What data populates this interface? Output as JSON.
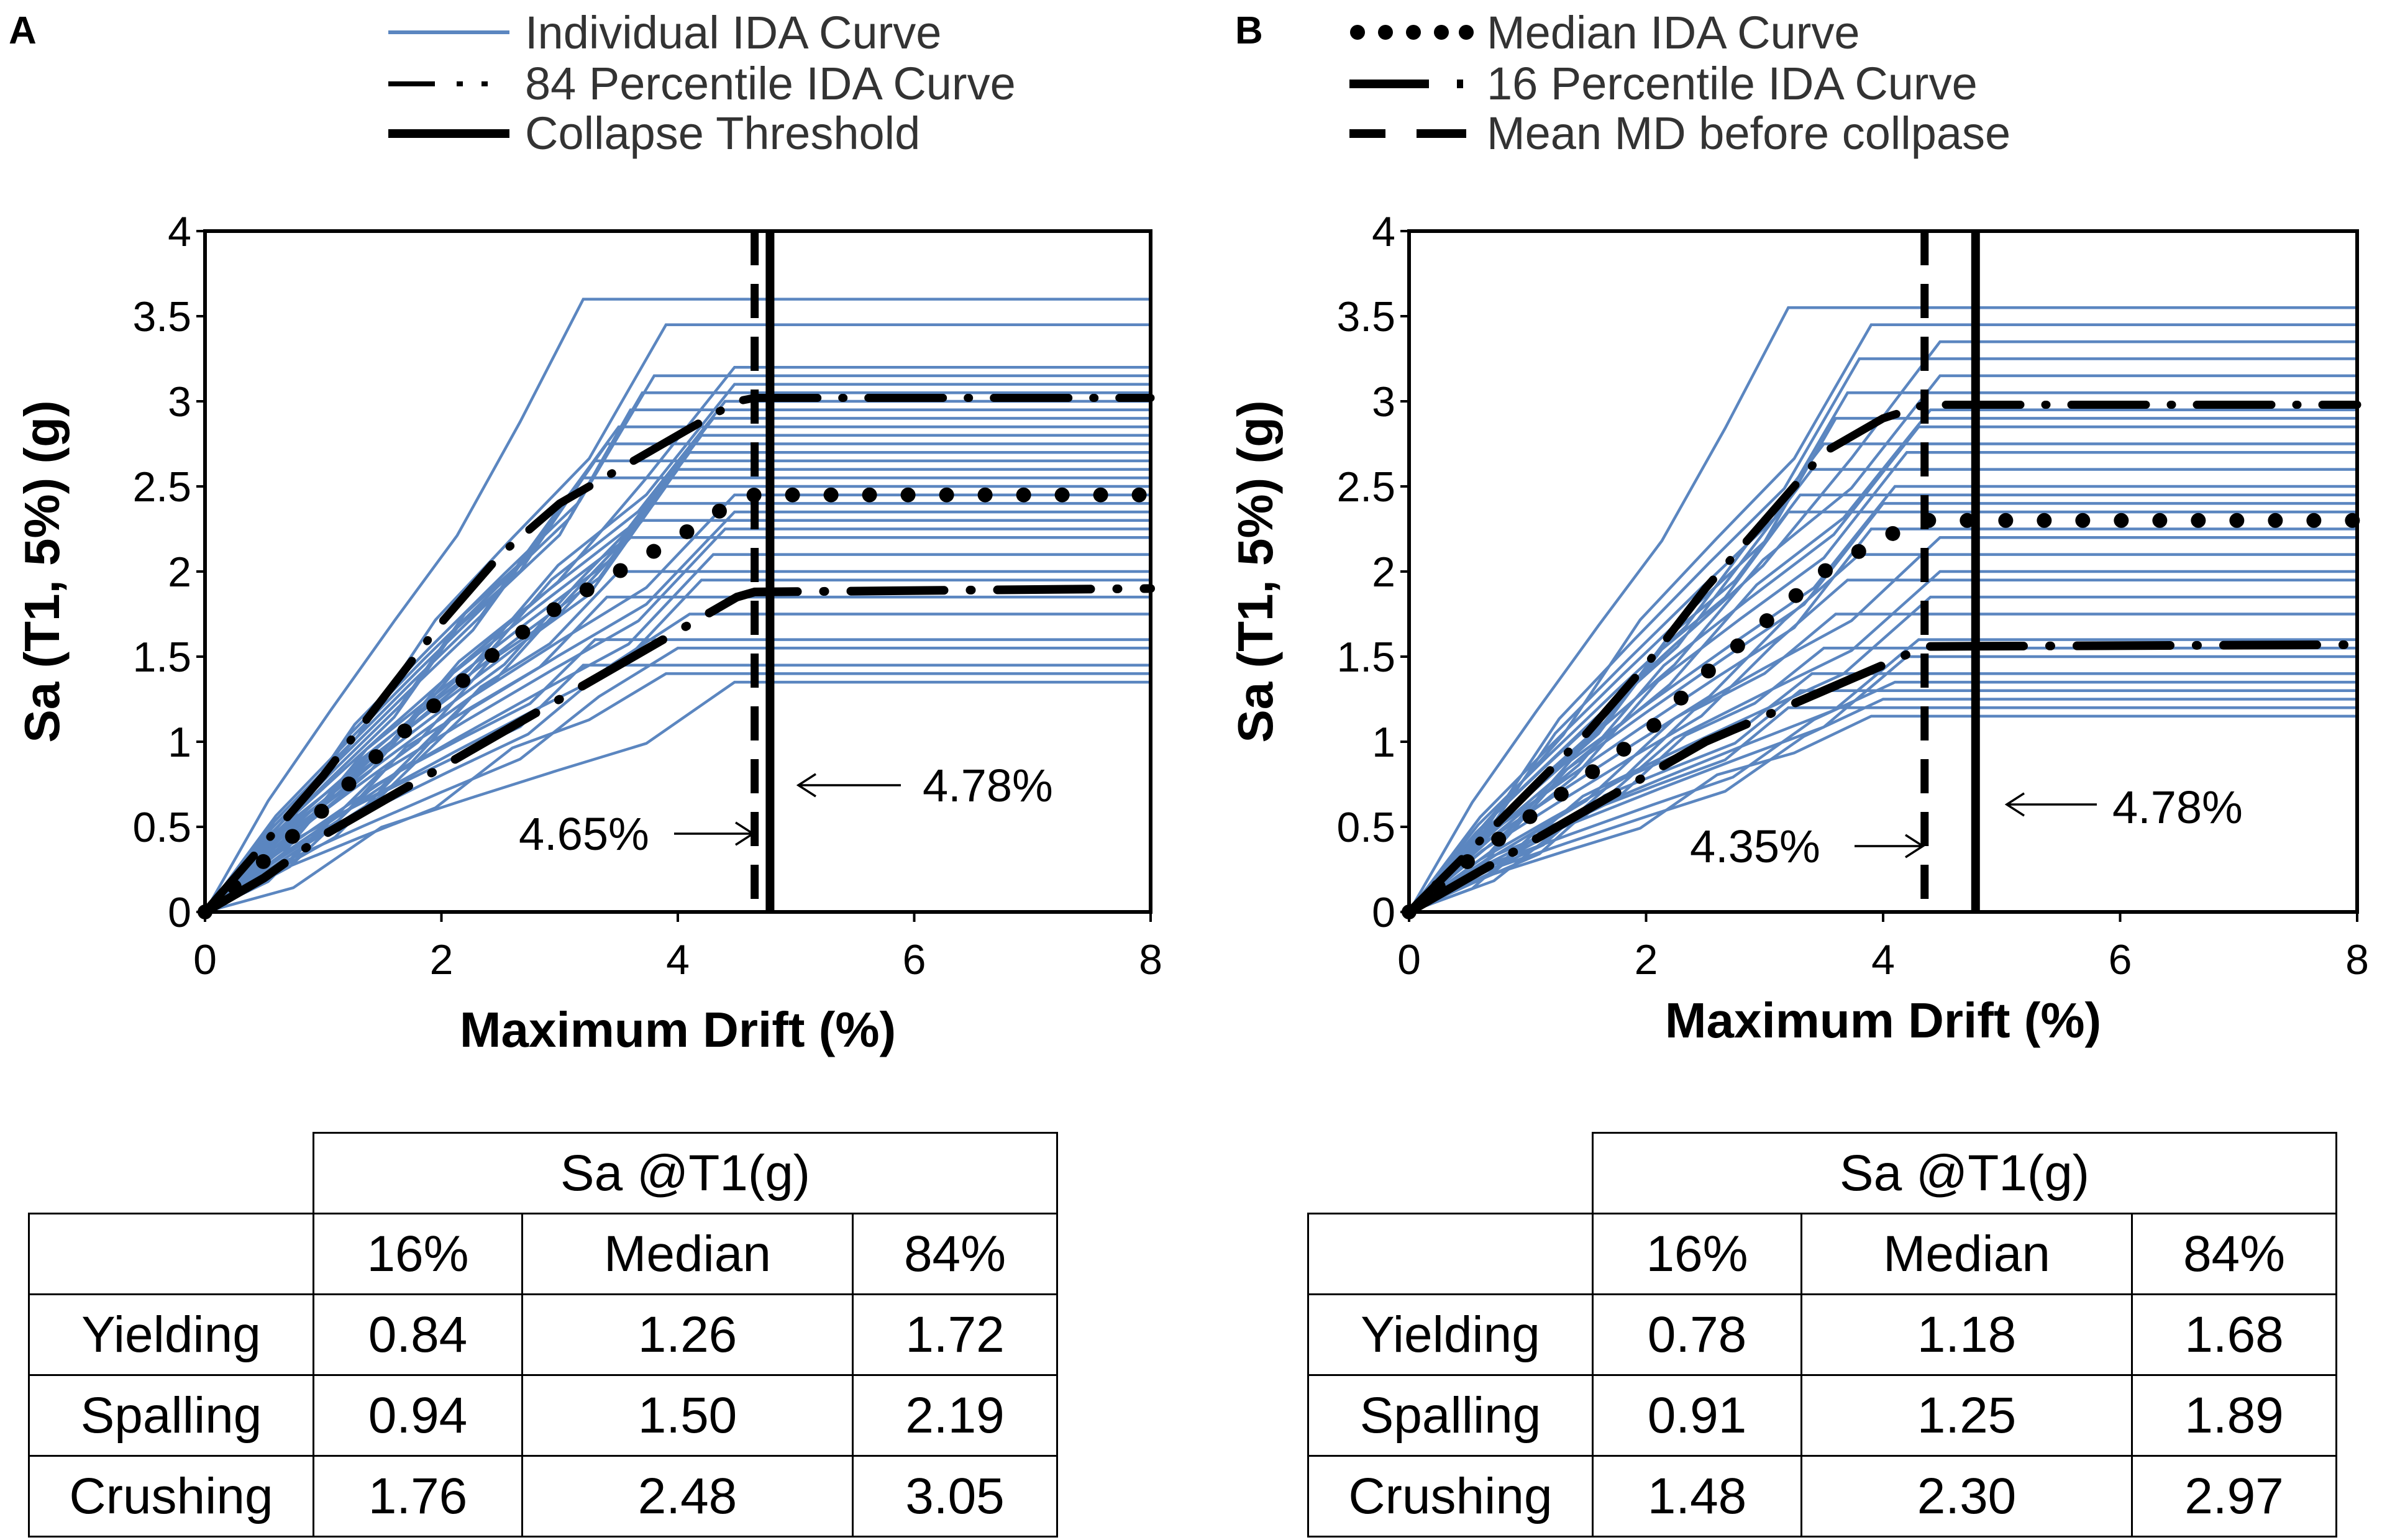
{
  "chart_data": [
    {
      "type": "line",
      "panel": "A",
      "xlabel": "Maximum Drift (%)",
      "ylabel": "Sa (T1, 5%) (g)",
      "xlim": [
        0,
        8
      ],
      "ylim": [
        0,
        4
      ],
      "x_ticks": [
        "0",
        "2",
        "4",
        "6",
        "8"
      ],
      "y_ticks": [
        "0",
        "0.5",
        "1",
        "1.5",
        "2",
        "2.5",
        "3",
        "3.5",
        "4"
      ],
      "legend": [
        "Individual IDA Curve",
        "84 Percentile IDA Curve",
        "Collapse Threshold"
      ],
      "individual_plateaus": [
        3.6,
        3.45,
        3.2,
        3.15,
        3.1,
        3.05,
        3.0,
        2.95,
        2.9,
        2.85,
        2.8,
        2.75,
        2.7,
        2.65,
        2.6,
        2.55,
        2.5,
        2.45,
        2.4,
        2.35,
        2.3,
        2.25,
        2.2,
        2.1,
        2.0,
        1.95,
        1.85,
        1.75,
        1.6,
        1.55,
        1.45,
        1.4,
        1.35
      ],
      "series": [
        {
          "name": "84 Percentile IDA Curve",
          "x": [
            0,
            0.5,
            1.0,
            1.5,
            2.0,
            2.5,
            3.0,
            3.5,
            4.0,
            4.5,
            4.65,
            8
          ],
          "y": [
            0,
            0.4,
            0.8,
            1.25,
            1.7,
            2.1,
            2.4,
            2.6,
            2.8,
            3.0,
            3.02,
            3.02
          ]
        },
        {
          "name": "Median IDA Curve",
          "x": [
            0,
            0.5,
            1.0,
            1.5,
            2.0,
            2.5,
            3.0,
            3.5,
            4.0,
            4.5,
            4.65,
            8
          ],
          "y": [
            0,
            0.3,
            0.6,
            0.95,
            1.25,
            1.55,
            1.8,
            2.0,
            2.2,
            2.42,
            2.45,
            2.45
          ]
        },
        {
          "name": "16 Percentile IDA Curve",
          "x": [
            0,
            0.5,
            1.0,
            1.5,
            2.0,
            2.5,
            3.0,
            3.5,
            4.0,
            4.5,
            4.65,
            8
          ],
          "y": [
            0,
            0.2,
            0.45,
            0.65,
            0.85,
            1.05,
            1.25,
            1.45,
            1.65,
            1.85,
            1.88,
            1.9
          ]
        }
      ],
      "mean_md_before_collapse": 4.65,
      "collapse_threshold": 4.78,
      "annotations": [
        "4.65%",
        "4.78%"
      ]
    },
    {
      "type": "line",
      "panel": "B",
      "xlabel": "Maximum Drift (%)",
      "ylabel": "Sa (T1, 5%) (g)",
      "xlim": [
        0,
        8
      ],
      "ylim": [
        0,
        4
      ],
      "x_ticks": [
        "0",
        "2",
        "4",
        "6",
        "8"
      ],
      "y_ticks": [
        "0",
        "0.5",
        "1",
        "1.5",
        "2",
        "2.5",
        "3",
        "3.5",
        "4"
      ],
      "legend": [
        "Median IDA Curve",
        "16 Percentile IDA Curve",
        "Mean MD before collpase"
      ],
      "individual_plateaus": [
        3.55,
        3.45,
        3.35,
        3.25,
        3.15,
        3.05,
        2.95,
        2.9,
        2.85,
        2.75,
        2.7,
        2.6,
        2.5,
        2.45,
        2.4,
        2.35,
        2.25,
        2.2,
        2.1,
        2.0,
        1.95,
        1.85,
        1.75,
        1.6,
        1.55,
        1.5,
        1.4,
        1.35,
        1.3,
        1.25,
        1.2,
        1.15
      ],
      "series": [
        {
          "name": "84 Percentile IDA Curve",
          "x": [
            0,
            0.5,
            1.0,
            1.5,
            2.0,
            2.5,
            3.0,
            3.5,
            4.0,
            4.35,
            8
          ],
          "y": [
            0,
            0.35,
            0.7,
            1.05,
            1.45,
            1.9,
            2.3,
            2.7,
            2.9,
            2.98,
            2.98
          ]
        },
        {
          "name": "Median IDA Curve",
          "x": [
            0,
            0.5,
            1.0,
            1.5,
            2.0,
            2.5,
            3.0,
            3.5,
            4.0,
            4.35,
            8
          ],
          "y": [
            0,
            0.3,
            0.55,
            0.8,
            1.05,
            1.4,
            1.7,
            2.0,
            2.2,
            2.3,
            2.3
          ]
        },
        {
          "name": "16 Percentile IDA Curve",
          "x": [
            0,
            0.5,
            1.0,
            1.5,
            2.0,
            2.5,
            3.0,
            3.5,
            4.0,
            4.35,
            8
          ],
          "y": [
            0,
            0.2,
            0.4,
            0.6,
            0.8,
            1.0,
            1.15,
            1.3,
            1.45,
            1.56,
            1.57
          ]
        }
      ],
      "mean_md_before_collapse": 4.35,
      "collapse_threshold": 4.78,
      "annotations": [
        "4.35%",
        "4.78%"
      ]
    }
  ],
  "figure": {
    "panel_a_letter": "A",
    "panel_b_letter": "B",
    "legend_a": [
      "Individual IDA Curve",
      "84 Percentile IDA Curve",
      "Collapse Threshold"
    ],
    "legend_b": [
      "Median IDA Curve",
      "16 Percentile IDA Curve",
      "Mean MD before collpase"
    ],
    "xlabel": "Maximum Drift (%)",
    "ylabel": "Sa (T1, 5%) (g)",
    "x_ticks": [
      "0",
      "2",
      "4",
      "6",
      "8"
    ],
    "y_ticks": [
      "0",
      "0.5",
      "1",
      "1.5",
      "2",
      "2.5",
      "3",
      "3.5",
      "4"
    ],
    "annotation_a_mean": "4.65%",
    "annotation_a_collapse": "4.78%",
    "annotation_b_mean": "4.35%",
    "annotation_b_collapse": "4.78%"
  },
  "tables": {
    "a": {
      "header": "Sa @T1(g)",
      "columns": [
        "16%",
        "Median",
        "84%"
      ],
      "rows": [
        {
          "label": "Yielding",
          "values": [
            "0.84",
            "1.26",
            "1.72"
          ]
        },
        {
          "label": "Spalling",
          "values": [
            "0.94",
            "1.50",
            "2.19"
          ]
        },
        {
          "label": "Crushing",
          "values": [
            "1.76",
            "2.48",
            "3.05"
          ]
        }
      ]
    },
    "b": {
      "header": "Sa @T1(g)",
      "columns": [
        "16%",
        "Median",
        "84%"
      ],
      "rows": [
        {
          "label": "Yielding",
          "values": [
            "0.78",
            "1.18",
            "1.68"
          ]
        },
        {
          "label": "Spalling",
          "values": [
            "0.91",
            "1.25",
            "1.89"
          ]
        },
        {
          "label": "Crushing",
          "values": [
            "1.48",
            "2.30",
            "2.97"
          ]
        }
      ]
    }
  },
  "colors": {
    "individual_curve": "#5b86c0",
    "summary_curve": "#000000",
    "axis": "#000000"
  }
}
